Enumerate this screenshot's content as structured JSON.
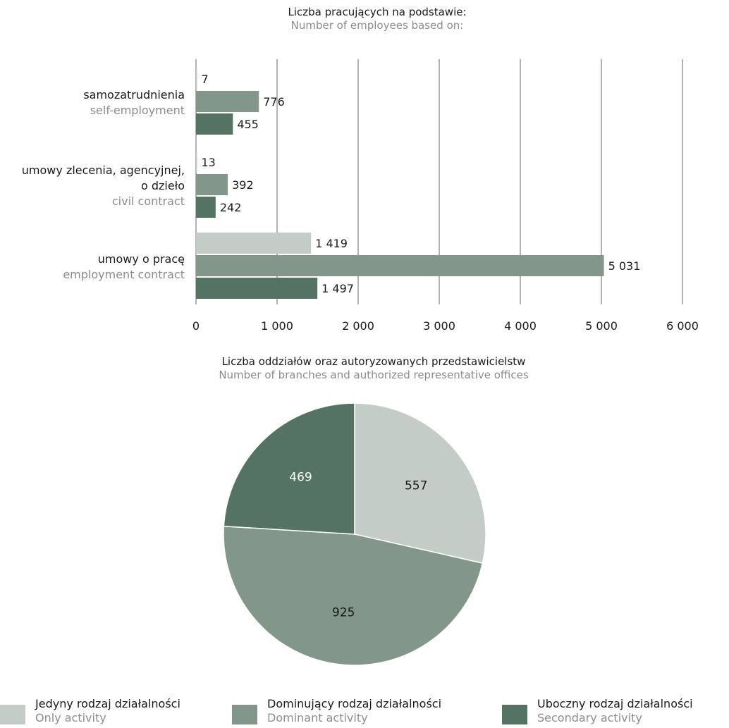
{
  "colors": {
    "only": "#c3ccc6",
    "dominant": "#82968a",
    "secondary": "#557362",
    "grid": "#666666",
    "secondary_text": "#8c8c8c"
  },
  "chart_data": [
    {
      "type": "bar",
      "orientation": "horizontal",
      "title": "Liczba pracujących na podstawie:",
      "subtitle": "Number of employees based on:",
      "categories": [
        {
          "pl": "samozatrudnienia",
          "en": "self-employment"
        },
        {
          "pl": "umowy zlecenia, agencyjnej, o dzieło",
          "pl_lines": [
            "umowy zlecenia, agencyjnej,",
            "o dzieło"
          ],
          "en": "civil contract"
        },
        {
          "pl": "umowy o pracę",
          "en": "employment contract"
        }
      ],
      "series": [
        {
          "key": "only",
          "values": [
            7,
            13,
            1419
          ],
          "labels": [
            "7",
            "13",
            "1 419"
          ]
        },
        {
          "key": "dominant",
          "values": [
            776,
            392,
            5031
          ],
          "labels": [
            "776",
            "392",
            "5 031"
          ]
        },
        {
          "key": "secondary",
          "values": [
            455,
            242,
            1497
          ],
          "labels": [
            "455",
            "242",
            "1 497"
          ]
        }
      ],
      "xlim": [
        0,
        6000
      ],
      "xticks": [
        0,
        1000,
        2000,
        3000,
        4000,
        5000,
        6000
      ],
      "xtick_labels": [
        "0",
        "1 000",
        "2 000",
        "3 000",
        "4 000",
        "5 000",
        "6 000"
      ],
      "grid": true
    },
    {
      "type": "pie",
      "title": "Liczba oddziałów oraz autoryzowanych przedstawicielstw",
      "subtitle": "Number of branches and authorized representative offices",
      "slices": [
        {
          "key": "only",
          "value": 557,
          "label": "557"
        },
        {
          "key": "dominant",
          "value": 925,
          "label": "925"
        },
        {
          "key": "secondary",
          "value": 469,
          "label": "469"
        }
      ]
    }
  ],
  "legend": [
    {
      "key": "only",
      "pl": "Jedyny rodzaj działalności",
      "en": "Only activity"
    },
    {
      "key": "dominant",
      "pl": "Dominujący rodzaj działalności",
      "en": "Dominant activity"
    },
    {
      "key": "secondary",
      "pl": "Uboczny rodzaj działalności",
      "en": "Secondary activity"
    }
  ]
}
